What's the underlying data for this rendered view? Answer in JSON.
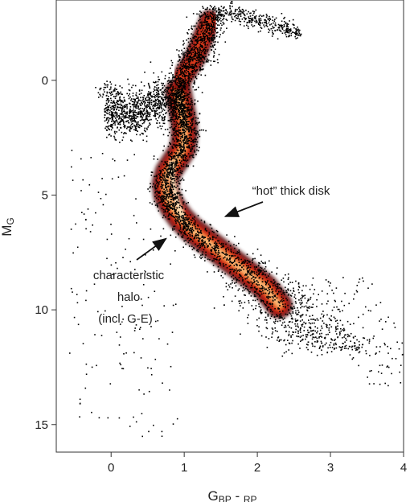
{
  "chart_data": {
    "type": "scatter",
    "xlabel_main": "G",
    "xlabel_sub1": "BP",
    "xlabel_sep": " - ",
    "xlabel_sub2": "RP",
    "ylabel_main": "M",
    "ylabel_sub": "G",
    "xlim": [
      -0.75,
      4.0
    ],
    "ylim": [
      16.2,
      -3.5
    ],
    "y_inverted": true,
    "xticks": [
      0,
      1,
      2,
      3,
      4
    ],
    "xtick_labels": [
      "0",
      "1",
      "2",
      "3",
      "4"
    ],
    "yticks": [
      0,
      5,
      10,
      15
    ],
    "ytick_labels": [
      "0",
      "5",
      "10",
      "15"
    ],
    "grid": false,
    "colormap": [
      "#000000",
      "#4a0000",
      "#a01010",
      "#d83a1a",
      "#f07a30",
      "#fbc080",
      "#fff0c8"
    ],
    "density_ridges": [
      {
        "x": [
          0.92,
          0.95,
          0.98,
          1.0,
          1.0,
          0.98,
          0.88,
          0.78,
          0.74,
          0.76,
          0.84,
          0.95,
          1.1,
          1.3,
          1.5,
          1.7,
          1.9,
          2.1,
          2.3
        ],
        "y": [
          0.5,
          1.0,
          1.5,
          2.0,
          2.5,
          3.0,
          3.5,
          4.0,
          4.5,
          5.0,
          5.5,
          6.0,
          6.5,
          7.0,
          7.5,
          8.0,
          8.5,
          9.0,
          9.8
        ]
      },
      {
        "x": [
          0.95,
          1.05,
          1.15,
          1.25,
          1.35
        ],
        "y": [
          0.0,
          -0.5,
          -1.0,
          -1.8,
          -2.6
        ]
      }
    ],
    "annotations": [
      {
        "lines": [
          "“hot” thick disk"
        ],
        "arrow_from": [
          1.88,
          5.0
        ],
        "arrow_to": [
          1.52,
          6.0
        ]
      },
      {
        "lines": [
          "characteristic",
          "halo",
          "(incl. G-E)"
        ],
        "arrow_from": [
          0.33,
          7.8
        ],
        "arrow_to": [
          0.75,
          6.9
        ]
      }
    ]
  }
}
